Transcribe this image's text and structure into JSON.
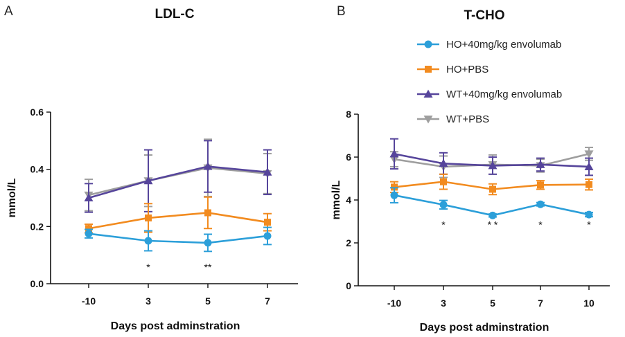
{
  "colors": {
    "HO_env": "#2c9fd9",
    "HO_PBS": "#f28b1f",
    "WT_env": "#56459b",
    "WT_PBS": "#9e9e9e"
  },
  "legend": [
    {
      "name": "HO+40mg/kg envolumab",
      "marker": "circle",
      "color_key": "HO_env"
    },
    {
      "name": "HO+PBS",
      "marker": "square",
      "color_key": "HO_PBS"
    },
    {
      "name": "WT+40mg/kg envolumab",
      "marker": "triangle-up",
      "color_key": "WT_env"
    },
    {
      "name": "WT+PBS",
      "marker": "triangle-down",
      "color_key": "WT_PBS"
    }
  ],
  "chart_data": [
    {
      "panel": "A",
      "type": "line",
      "title": "LDL-C",
      "xlabel": "Days post adminstration",
      "ylabel": "mmol/L",
      "categories": [
        "-10",
        "3",
        "5",
        "7"
      ],
      "ylim": [
        0,
        0.6
      ],
      "yticks": [
        "0.0",
        "0.2",
        "0.4",
        "0.6"
      ],
      "series": [
        {
          "name": "WT+PBS",
          "color_key": "WT_PBS",
          "marker": "triangle-down",
          "values": [
            0.31,
            0.36,
            0.405,
            0.385
          ],
          "errors": [
            0.055,
            0.09,
            0.1,
            0.07
          ]
        },
        {
          "name": "WT+40mg/kg envolumab",
          "color_key": "WT_env",
          "marker": "triangle-up",
          "values": [
            0.3,
            0.36,
            0.41,
            0.39
          ],
          "errors": [
            0.05,
            0.108,
            0.09,
            0.078
          ]
        },
        {
          "name": "HO+PBS",
          "color_key": "HO_PBS",
          "marker": "square",
          "values": [
            0.193,
            0.23,
            0.248,
            0.215
          ],
          "errors": [
            0.015,
            0.05,
            0.055,
            0.03
          ]
        },
        {
          "name": "HO+40mg/kg envolumab",
          "color_key": "HO_env",
          "marker": "circle",
          "values": [
            0.175,
            0.15,
            0.143,
            0.167
          ],
          "errors": [
            0.015,
            0.035,
            0.03,
            0.03
          ]
        }
      ],
      "annotations": [
        {
          "category": "3",
          "text": "*"
        },
        {
          "category": "5",
          "text": "**"
        }
      ],
      "annotation_y": 0.065
    },
    {
      "panel": "B",
      "type": "line",
      "title": "T-CHO",
      "xlabel": "Days post adminstration",
      "ylabel": "mmol/L",
      "categories": [
        "-10",
        "3",
        "5",
        "7",
        "10"
      ],
      "ylim": [
        0,
        8
      ],
      "yticks": [
        "0",
        "2",
        "4",
        "6",
        "8"
      ],
      "series": [
        {
          "name": "WT+PBS",
          "color_key": "WT_PBS",
          "marker": "triangle-down",
          "values": [
            5.9,
            5.55,
            5.65,
            5.6,
            6.15
          ],
          "errors": [
            0.35,
            0.5,
            0.45,
            0.3,
            0.3
          ]
        },
        {
          "name": "WT+40mg/kg envolumab",
          "color_key": "WT_env",
          "marker": "triangle-up",
          "values": [
            6.15,
            5.7,
            5.6,
            5.65,
            5.55
          ],
          "errors": [
            0.7,
            0.5,
            0.4,
            0.3,
            0.4
          ]
        },
        {
          "name": "HO+PBS",
          "color_key": "HO_PBS",
          "marker": "square",
          "values": [
            4.6,
            4.85,
            4.5,
            4.7,
            4.72
          ],
          "errors": [
            0.25,
            0.35,
            0.25,
            0.2,
            0.25
          ]
        },
        {
          "name": "HO+40mg/kg envolumab",
          "color_key": "HO_env",
          "marker": "circle",
          "values": [
            4.22,
            3.78,
            3.28,
            3.8,
            3.32
          ],
          "errors": [
            0.35,
            0.2,
            0.07,
            0.08,
            0.1
          ]
        }
      ],
      "annotations": [
        {
          "category": "3",
          "text": "*"
        },
        {
          "category": "5",
          "text": "* *"
        },
        {
          "category": "7",
          "text": "*"
        },
        {
          "category": "10",
          "text": "*"
        }
      ],
      "annotation_y": 2.95
    }
  ]
}
